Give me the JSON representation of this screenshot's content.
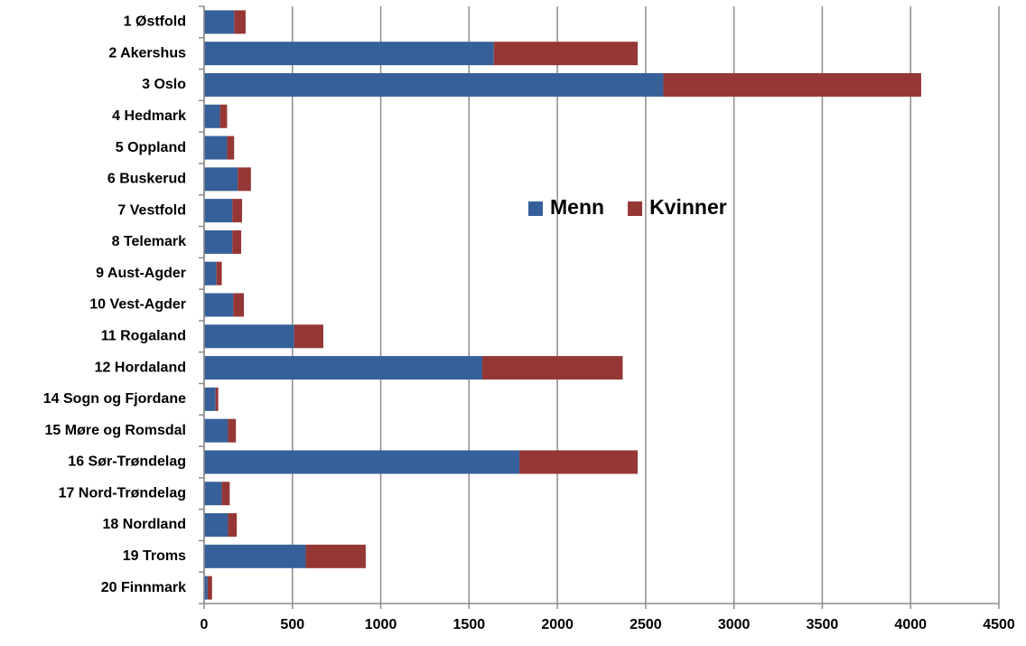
{
  "chart_data": {
    "type": "stacked_barh",
    "categories": [
      "1 Østfold",
      "2 Akershus",
      "3 Oslo",
      "4 Hedmark",
      "5 Oppland",
      "6 Buskerud",
      "7 Vestfold",
      "8 Telemark",
      "9 Aust-Agder",
      "10 Vest-Agder",
      "11 Rogaland",
      "12 Hordaland",
      "14 Sogn og Fjordane",
      "15 Møre og Romsdal",
      "16 Sør-Trøndelag",
      "17 Nord-Trøndelag",
      "18 Nordland",
      "19 Troms",
      "20 Finnmark"
    ],
    "series": [
      {
        "name": "Menn",
        "color": "#36609a",
        "values": [
          170,
          1640,
          2600,
          90,
          130,
          190,
          160,
          160,
          70,
          165,
          510,
          1575,
          65,
          135,
          1785,
          100,
          135,
          575,
          20
        ]
      },
      {
        "name": "Kvinner",
        "color": "#953735",
        "values": [
          65,
          815,
          1460,
          40,
          40,
          75,
          55,
          50,
          30,
          60,
          165,
          795,
          15,
          45,
          670,
          45,
          50,
          340,
          25
        ]
      }
    ],
    "xlim": [
      0,
      4500
    ],
    "xticks": [
      0,
      500,
      1000,
      1500,
      2000,
      2500,
      3000,
      3500,
      4000,
      4500
    ],
    "grid": true,
    "legend": "center"
  }
}
